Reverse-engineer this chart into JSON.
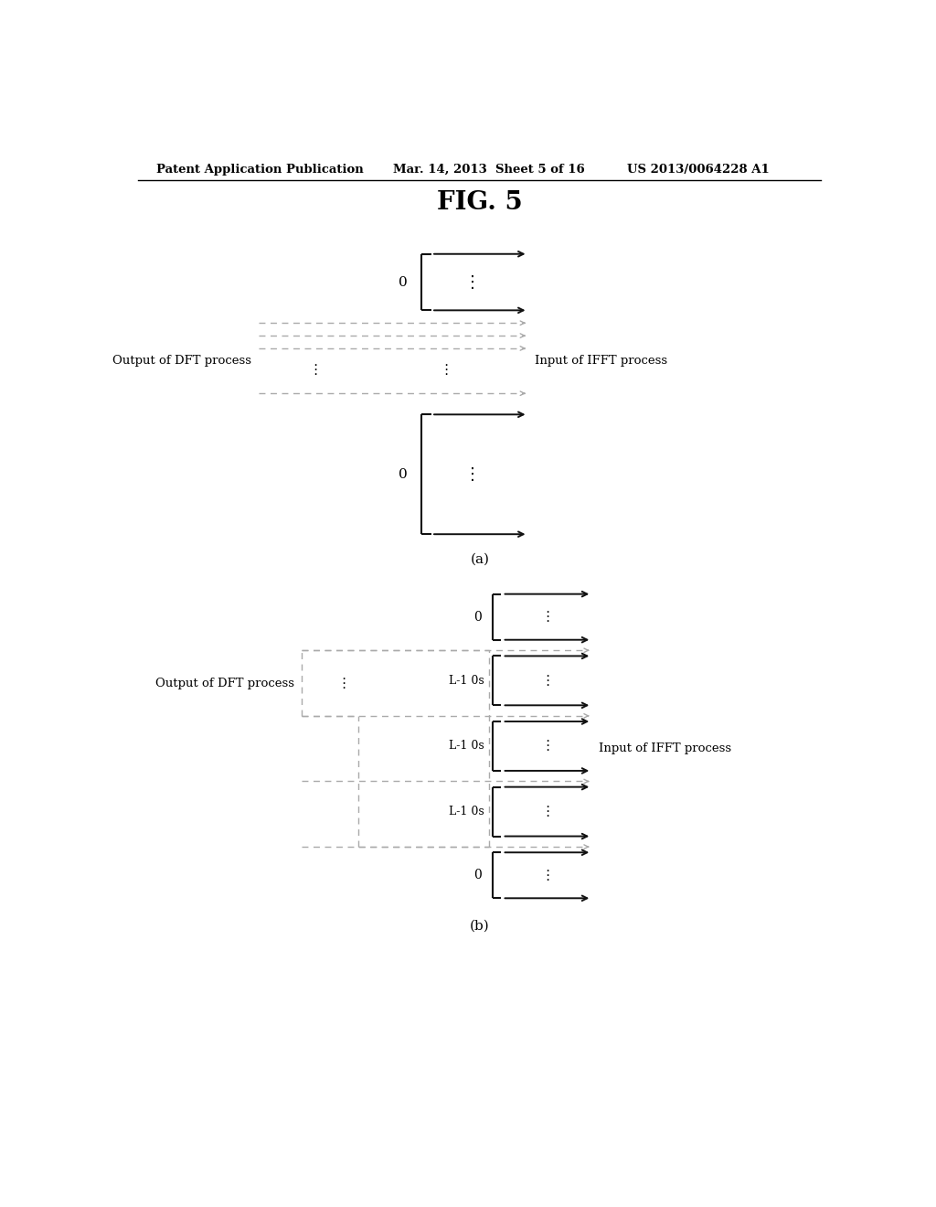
{
  "title": "FIG. 5",
  "header_left": "Patent Application Publication",
  "header_mid": "Mar. 14, 2013  Sheet 5 of 16",
  "header_right": "US 2013/0064228 A1",
  "label_a": "(a)",
  "label_b": "(b)",
  "label_output_dft": "Output of DFT process",
  "label_input_ifft": "Input of IFFT process",
  "background": "#ffffff",
  "text_color": "#000000",
  "dash_color": "#aaaaaa",
  "arrow_color": "#111111",
  "line_color": "#111111"
}
